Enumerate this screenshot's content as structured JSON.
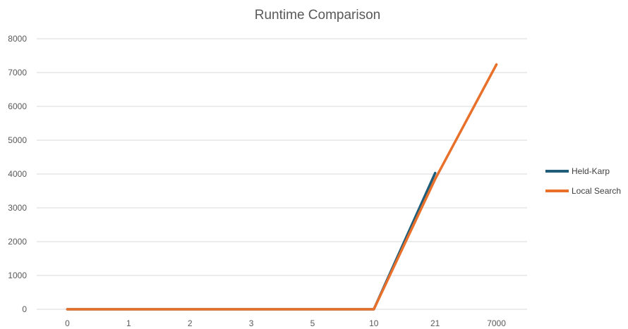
{
  "chart_data": {
    "type": "line",
    "title": "Runtime Comparison",
    "xlabel": "",
    "ylabel": "",
    "categories": [
      "0",
      "1",
      "2",
      "3",
      "5",
      "10",
      "21",
      "7000"
    ],
    "ylim": [
      0,
      8000
    ],
    "yticks": [
      0,
      1000,
      2000,
      3000,
      4000,
      5000,
      6000,
      7000,
      8000
    ],
    "grid": true,
    "legend_position": "right",
    "series": [
      {
        "name": "Held-Karp",
        "color": "#1f5d78",
        "values": [
          0,
          0,
          0,
          0,
          0,
          0,
          4030,
          null
        ]
      },
      {
        "name": "Local Search",
        "color": "#e8702a",
        "values": [
          0,
          0,
          0,
          0,
          0,
          0,
          3850,
          7240
        ]
      }
    ]
  }
}
